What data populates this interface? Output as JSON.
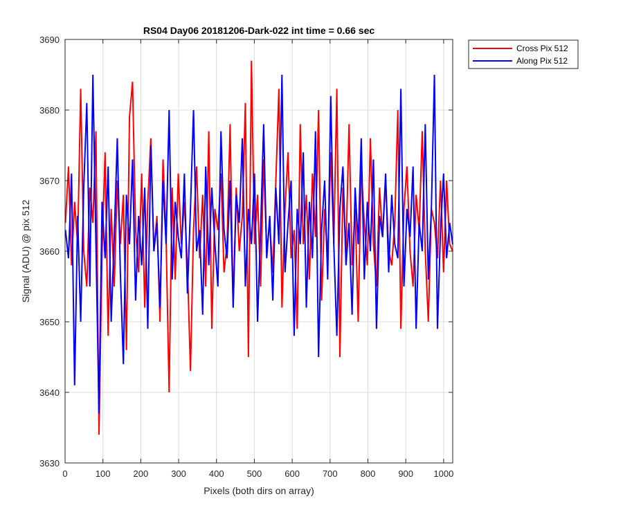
{
  "chart_data": {
    "type": "line",
    "title": "RS04 Day06 20181206-Dark-022 int time = 0.66 sec",
    "xlabel": "Pixels (both dirs on array)",
    "ylabel": "Signal (ADU) @ pix 512",
    "xlim": [
      0,
      1024
    ],
    "ylim": [
      3630,
      3690
    ],
    "xticks": [
      0,
      100,
      200,
      300,
      400,
      500,
      600,
      700,
      800,
      900,
      1000
    ],
    "yticks": [
      3630,
      3640,
      3650,
      3660,
      3670,
      3680,
      3690
    ],
    "grid": true,
    "legend_position": "outside-top-right",
    "x_range": [
      1,
      1024
    ],
    "series": [
      {
        "name": "Cross Pix 512",
        "color": "#ff0000",
        "mean": 3664,
        "values_sampled_every_8px": [
          3664,
          3672,
          3658,
          3667,
          3661,
          3683,
          3660,
          3655,
          3669,
          3664,
          3677,
          3634,
          3660,
          3674,
          3648,
          3666,
          3655,
          3670,
          3661,
          3668,
          3646,
          3679,
          3684,
          3663,
          3657,
          3671,
          3652,
          3667,
          3676,
          3660,
          3665,
          3650,
          3673,
          3662,
          3640,
          3669,
          3656,
          3671,
          3661,
          3667,
          3658,
          3643,
          3663,
          3672,
          3659,
          3668,
          3655,
          3677,
          3649,
          3666,
          3663,
          3671,
          3657,
          3661,
          3678,
          3652,
          3669,
          3660,
          3665,
          3681,
          3645,
          3687,
          3661,
          3668,
          3655,
          3673,
          3660,
          3664,
          3657,
          3670,
          3683,
          3652,
          3666,
          3674,
          3659,
          3663,
          3649,
          3678,
          3661,
          3668,
          3656,
          3671,
          3662,
          3680,
          3653,
          3666,
          3659,
          3674,
          3661,
          3683,
          3645,
          3669,
          3660,
          3678,
          3658,
          3666,
          3650,
          3672,
          3664,
          3658,
          3676,
          3661,
          3655,
          3669,
          3662,
          3670,
          3660,
          3658,
          3664,
          3680,
          3649,
          3666,
          3672,
          3660,
          3655,
          3668,
          3663,
          3677,
          3660,
          3650,
          3666,
          3664,
          3659,
          3670,
          3657,
          3670,
          3661,
          3660
        ]
      },
      {
        "name": "Along Pix 512",
        "color": "#0000ff",
        "mean": 3663,
        "values_sampled_every_8px": [
          3663,
          3659,
          3671,
          3641,
          3665,
          3650,
          3669,
          3681,
          3655,
          3685,
          3661,
          3637,
          3667,
          3659,
          3672,
          3650,
          3662,
          3676,
          3657,
          3644,
          3668,
          3661,
          3673,
          3653,
          3665,
          3658,
          3669,
          3649,
          3675,
          3660,
          3664,
          3652,
          3670,
          3661,
          3680,
          3656,
          3667,
          3662,
          3659,
          3671,
          3654,
          3666,
          3680,
          3660,
          3663,
          3651,
          3672,
          3658,
          3669,
          3661,
          3655,
          3677,
          3663,
          3659,
          3670,
          3652,
          3668,
          3664,
          3676,
          3655,
          3666,
          3661,
          3671,
          3650,
          3663,
          3678,
          3659,
          3665,
          3653,
          3669,
          3661,
          3685,
          3657,
          3664,
          3670,
          3648,
          3666,
          3661,
          3674,
          3652,
          3667,
          3659,
          3677,
          3645,
          3663,
          3670,
          3656,
          3682,
          3661,
          3648,
          3666,
          3672,
          3658,
          3664,
          3651,
          3669,
          3661,
          3676,
          3656,
          3667,
          3660,
          3673,
          3649,
          3665,
          3662,
          3671,
          3657,
          3668,
          3661,
          3659,
          3683,
          3655,
          3666,
          3662,
          3672,
          3649,
          3664,
          3660,
          3678,
          3656,
          3666,
          3685,
          3649,
          3663,
          3671,
          3659,
          3664,
          3661
        ]
      }
    ]
  }
}
